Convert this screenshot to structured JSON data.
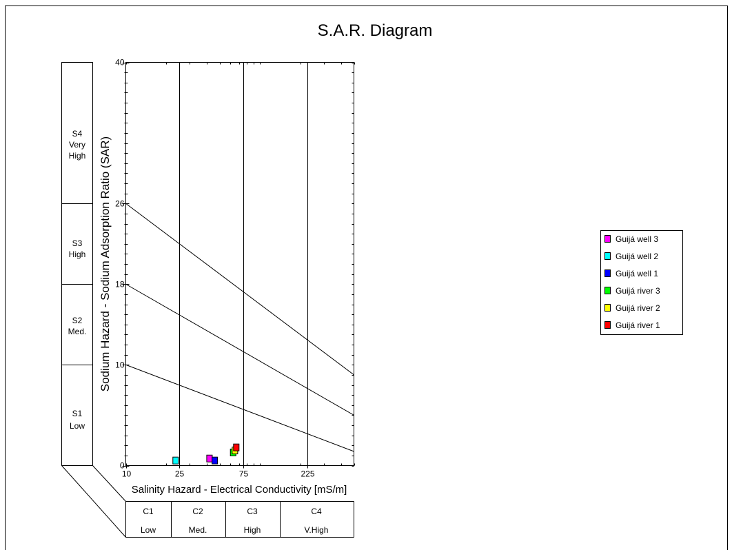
{
  "chart_data": {
    "type": "scatter",
    "title": "S.A.R. Diagram",
    "xlabel": "Salinity Hazard - Electrical Conductivity [mS/m]",
    "ylabel": "Sodium Hazard - Sodium Adsorption Ratio (SAR)",
    "x_scale": "log",
    "xlim": [
      10,
      500
    ],
    "ylim": [
      0,
      40
    ],
    "x_ticks": [
      10,
      25,
      75,
      225
    ],
    "y_ticks": [
      0,
      10,
      18,
      26,
      40
    ],
    "hazard_lines": [
      {
        "sar_at_x10": 10,
        "sar_at_x500": 1.4
      },
      {
        "sar_at_x10": 18,
        "sar_at_x500": 5.0
      },
      {
        "sar_at_x10": 26,
        "sar_at_x500": 9.0
      }
    ],
    "salinity_classes": [
      {
        "code": "C1",
        "label": "Low"
      },
      {
        "code": "C2",
        "label": "Med."
      },
      {
        "code": "C3",
        "label": "High"
      },
      {
        "code": "C4",
        "label": "V.High"
      }
    ],
    "sodium_classes": [
      {
        "code": "S1",
        "label": "Low"
      },
      {
        "code": "S2",
        "label": "Med."
      },
      {
        "code": "S3",
        "label": "High"
      },
      {
        "code": "S4",
        "label": "Very High"
      }
    ],
    "legend_position": "right",
    "series": [
      {
        "name": "Guijá well 3",
        "color": "#ff00ff",
        "x": 42,
        "y": 0.7
      },
      {
        "name": "Guijá well 2",
        "color": "#00ffff",
        "x": 23.5,
        "y": 0.5
      },
      {
        "name": "Guijá well 1",
        "color": "#0000ff",
        "x": 46,
        "y": 0.5
      },
      {
        "name": "Guijá river 3",
        "color": "#00ff00",
        "x": 63,
        "y": 1.3
      },
      {
        "name": "Guijá river 2",
        "color": "#ffff00",
        "x": 65,
        "y": 1.5
      },
      {
        "name": "Guijá river 1",
        "color": "#ff0000",
        "x": 66.5,
        "y": 1.8
      }
    ]
  }
}
